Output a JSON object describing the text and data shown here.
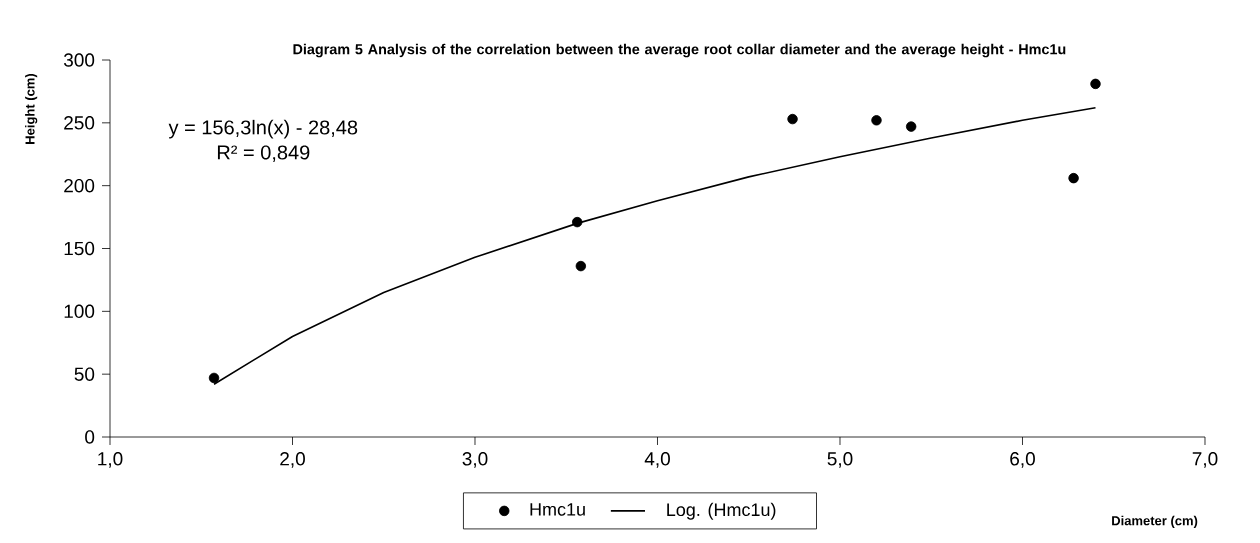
{
  "chart_data": {
    "type": "scatter",
    "title": "Diagram 5  Analysis of the correlation between the average root collar diameter and the average height - Hmc1u",
    "xlabel": "Diameter (cm)",
    "ylabel": "Height (cm)",
    "annotations": [
      "y = 156,3ln(x) - 28,48",
      "R² = 0,849"
    ],
    "xlim": [
      1,
      7
    ],
    "ylim": [
      0,
      300
    ],
    "xticks": [
      {
        "value": 1,
        "label": "1,0"
      },
      {
        "value": 2,
        "label": "2,0"
      },
      {
        "value": 3,
        "label": "3,0"
      },
      {
        "value": 4,
        "label": "4,0"
      },
      {
        "value": 5,
        "label": "5,0"
      },
      {
        "value": 6,
        "label": "6,0"
      },
      {
        "value": 7,
        "label": "7,0"
      }
    ],
    "yticks": [
      0,
      50,
      100,
      150,
      200,
      250,
      300
    ],
    "legend": "bottom",
    "series": [
      {
        "name": "Hmc1u",
        "marker": "circle",
        "color": "#000000",
        "x": [
          1.57,
          3.56,
          3.58,
          4.74,
          5.2,
          5.39,
          6.28,
          6.4
        ],
        "values": [
          47,
          171,
          136,
          253,
          252,
          247,
          206,
          281
        ]
      },
      {
        "name": "Log. (Hmc1u)",
        "type": "line",
        "marker": "none",
        "line_style": "solid",
        "color": "#000000",
        "x": [
          1.57,
          2,
          2.5,
          3,
          3.56,
          4,
          4.5,
          5,
          5.5,
          6,
          6.4
        ],
        "values": [
          42,
          80,
          115,
          143,
          170,
          188,
          207,
          223,
          238,
          252,
          262
        ]
      }
    ]
  }
}
